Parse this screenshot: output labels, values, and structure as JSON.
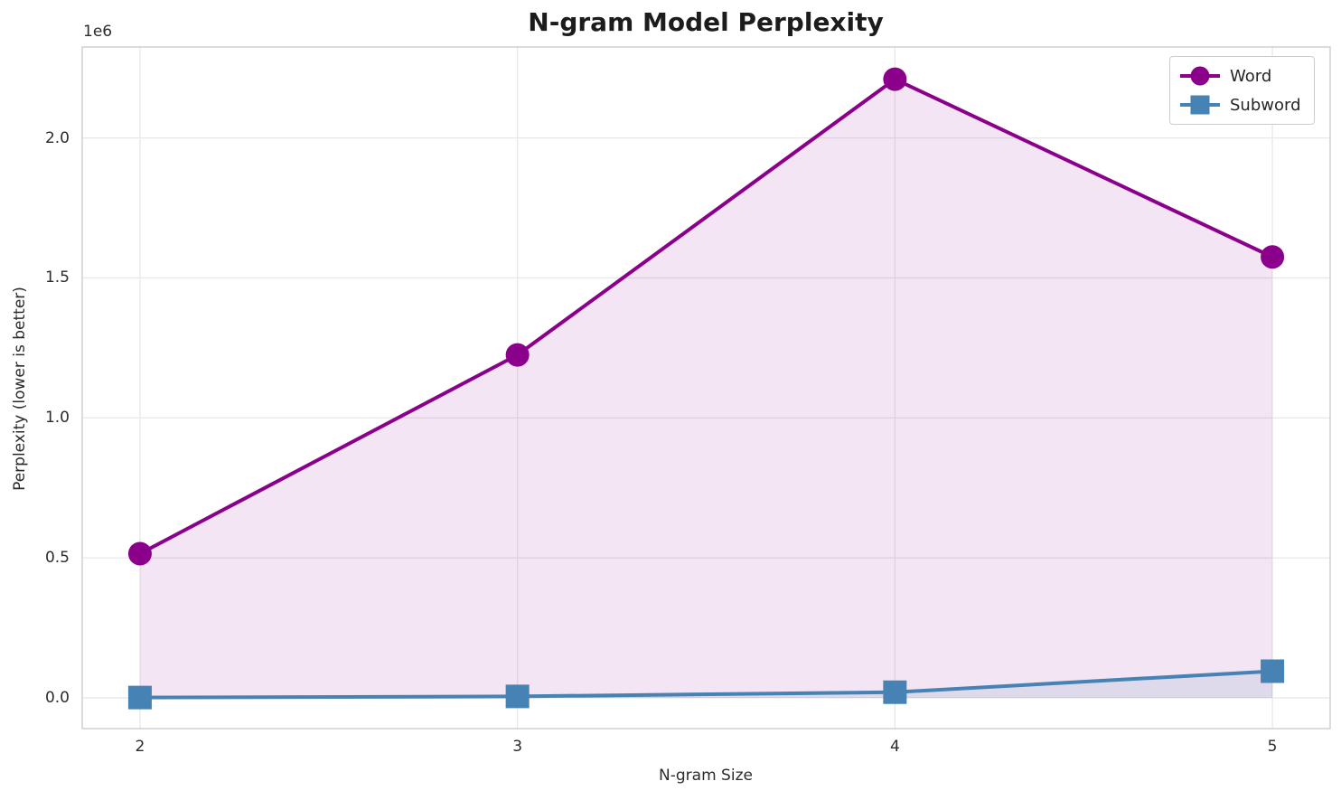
{
  "chart_data": {
    "type": "line",
    "title": "N-gram Model Perplexity",
    "xlabel": "N-gram Size",
    "ylabel": "Perplexity (lower is better)",
    "y_offset_label": "1e6",
    "x": [
      2,
      3,
      4,
      5
    ],
    "series": [
      {
        "name": "Word",
        "color": "#8B008B",
        "marker": "circle",
        "values": [
          515000,
          1225000,
          2210000,
          1575000
        ],
        "fill_to_zero": true,
        "fill_opacity": 0.1
      },
      {
        "name": "Subword",
        "color": "#4682B4",
        "marker": "square",
        "values": [
          1000,
          5000,
          20000,
          95000
        ],
        "fill_to_zero": true,
        "fill_opacity": 0.12
      }
    ],
    "xlim": [
      1.847,
      5.153
    ],
    "ylim": [
      -110000,
      2325000
    ],
    "xticks": {
      "values": [
        2,
        3,
        4,
        5
      ],
      "labels": [
        "2",
        "3",
        "4",
        "5"
      ]
    },
    "yticks": {
      "values": [
        0,
        500000,
        1000000,
        1500000,
        2000000
      ],
      "labels": [
        "0.0",
        "0.5",
        "1.0",
        "1.5",
        "2.0"
      ]
    },
    "grid": true,
    "legend": {
      "position": "upper right",
      "entries": [
        "Word",
        "Subword"
      ]
    }
  },
  "colors": {
    "word": "#8B008B",
    "subword": "#4682B4",
    "grid": "#e8e8e8",
    "spine": "#c9c9c9",
    "text": "#2b2b2b",
    "title": "#1c1c1c",
    "background": "#ffffff"
  }
}
